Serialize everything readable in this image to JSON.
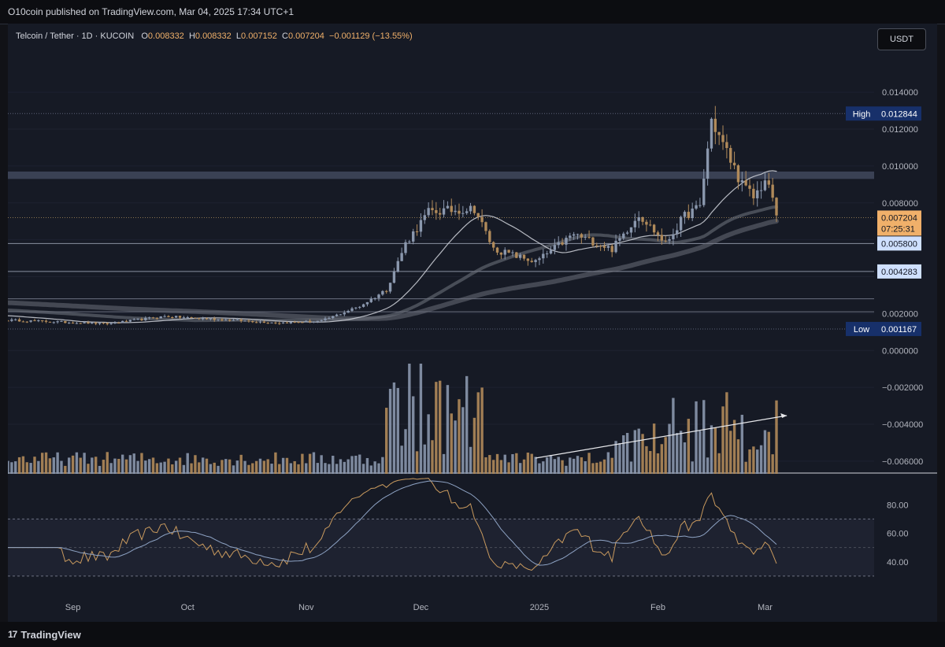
{
  "header": {
    "published": "O10coin published on TradingView.com, Mar 04, 2025 17:34 UTC+1"
  },
  "footer": {
    "brand": "TradingView",
    "mark": "17"
  },
  "legend": {
    "symbol": "Telcoin / Tether · 1D · KUCOIN",
    "open_k": "O",
    "open": "0.008332",
    "high_k": "H",
    "high": "0.008332",
    "low_k": "L",
    "low": "0.007152",
    "close_k": "C",
    "close": "0.007204",
    "change": "−0.001129 (−13.55%)"
  },
  "currency_button": "USDT",
  "colors": {
    "background": "#161a25",
    "up": "#8a97ad",
    "down": "#b08a5a",
    "ma_line": "#c8cbd3",
    "ma_thick": "#6b6f7a",
    "rsi_line": "#c99a5e",
    "rsi_ma": "#8ea3c4",
    "zone": "#4a5368",
    "price_tag": "#f0b06a",
    "level_tag": "#cfe0ff",
    "high_low_tag": "#17306a"
  },
  "chart_data": [
    {
      "type": "candlestick",
      "title": "Telcoin / Tether · 1D · KUCOIN",
      "x_ticks": [
        "Sep",
        "Oct",
        "Nov",
        "Dec",
        "2025",
        "Feb",
        "Mar"
      ],
      "y_ticks": [
        "0.014000",
        "0.012000",
        "0.010000",
        "0.008000",
        "0.002000",
        "0.000000",
        "−0.002000",
        "−0.004000",
        "−0.006000"
      ],
      "ylim": [
        -0.0066,
        0.0155
      ],
      "markers": {
        "high_label": "High",
        "high": "0.012844",
        "low_label": "Low",
        "low": "0.001167"
      },
      "price_tag": {
        "value": "0.007204",
        "countdown": "07:25:31"
      },
      "levels": [
        {
          "label": "0.005800",
          "value": 0.0058
        },
        {
          "label": "0.004283",
          "value": 0.004283
        }
      ],
      "resistance_zone": [
        0.0093,
        0.0097
      ],
      "extra_lines": [
        0.0028,
        0.0021
      ],
      "anchors": [
        {
          "date": "2024-08-15",
          "value": 0.00165
        },
        {
          "date": "2024-09-10",
          "value": 0.00145
        },
        {
          "date": "2024-09-25",
          "value": 0.00185
        },
        {
          "date": "2024-10-25",
          "value": 0.0015
        },
        {
          "date": "2024-11-05",
          "value": 0.0016
        },
        {
          "date": "2024-11-15",
          "value": 0.0024
        },
        {
          "date": "2024-11-22",
          "value": 0.0033
        },
        {
          "date": "2024-11-27",
          "value": 0.0058
        },
        {
          "date": "2024-12-03",
          "value": 0.0075
        },
        {
          "date": "2024-12-15",
          "value": 0.0077
        },
        {
          "date": "2024-12-20",
          "value": 0.0055
        },
        {
          "date": "2024-12-31",
          "value": 0.0048
        },
        {
          "date": "2025-01-10",
          "value": 0.0063
        },
        {
          "date": "2025-01-20",
          "value": 0.0055
        },
        {
          "date": "2025-01-27",
          "value": 0.0074
        },
        {
          "date": "2025-02-03",
          "value": 0.0058
        },
        {
          "date": "2025-02-08",
          "value": 0.0073
        },
        {
          "date": "2025-02-12",
          "value": 0.0078
        },
        {
          "date": "2025-02-15",
          "value": 0.0125
        },
        {
          "date": "2025-02-23",
          "value": 0.009
        },
        {
          "date": "2025-02-26",
          "value": 0.0083
        },
        {
          "date": "2025-03-01",
          "value": 0.0092
        },
        {
          "date": "2025-03-03",
          "value": 0.0083
        },
        {
          "date": "2025-03-04",
          "value": 0.0072
        }
      ]
    },
    {
      "type": "bar",
      "name": "volume"
    },
    {
      "type": "line",
      "name": "RSI",
      "y_ticks": [
        "80.00",
        "60.00",
        "40.00"
      ],
      "ylim": [
        20,
        100
      ],
      "band": [
        30,
        70
      ]
    }
  ]
}
